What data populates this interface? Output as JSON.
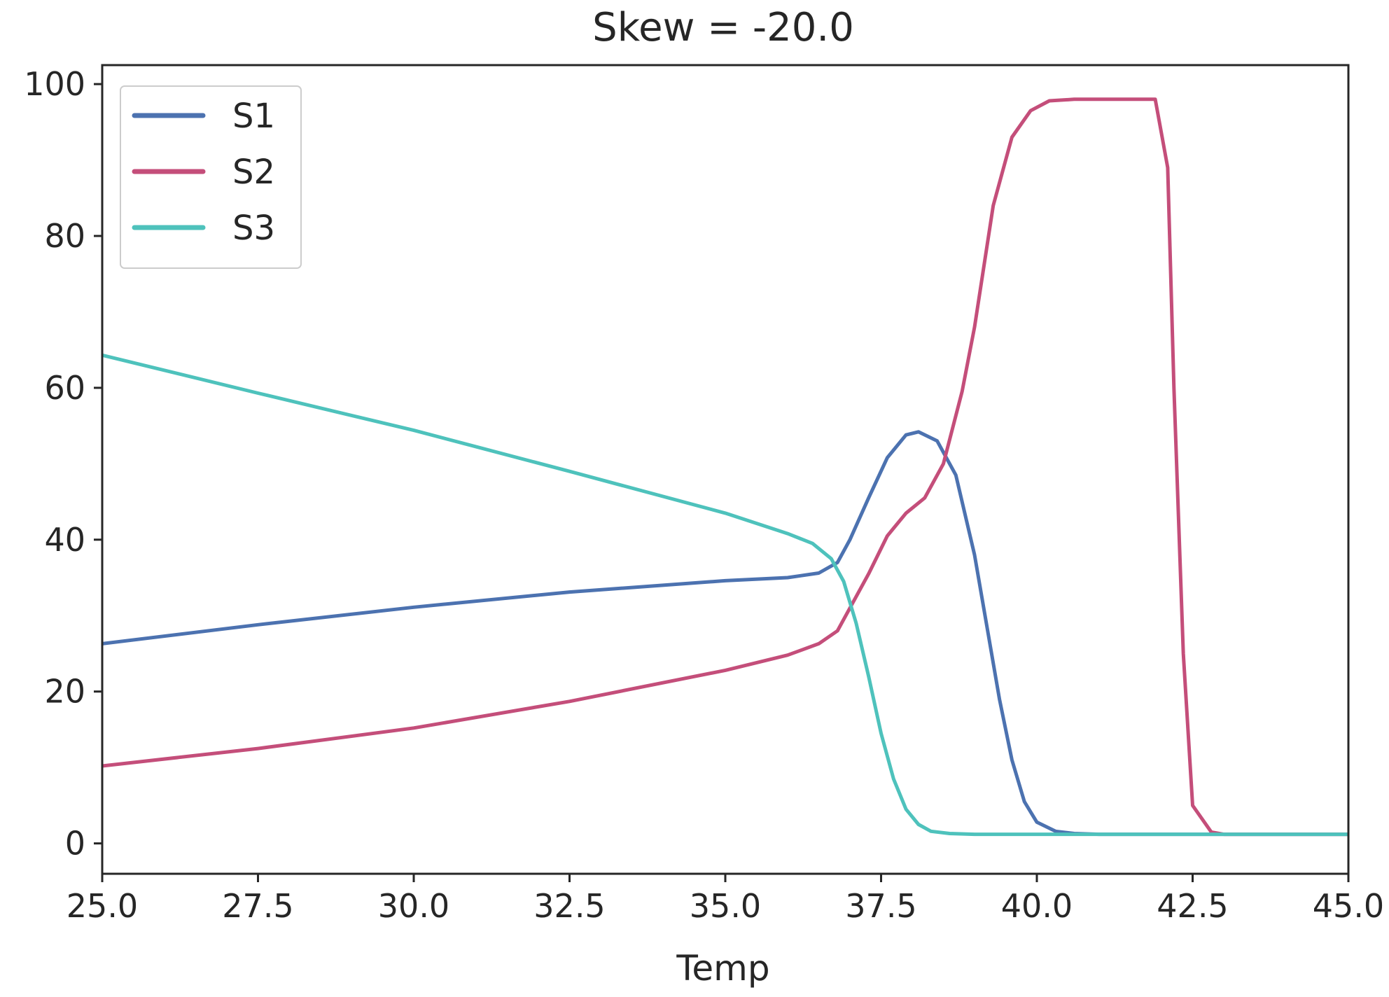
{
  "chart_data": {
    "type": "line",
    "title": "Skew = -20.0",
    "xlabel": "Temp",
    "ylabel": "",
    "xlim": [
      25.0,
      45.0
    ],
    "ylim": [
      -4,
      102.5
    ],
    "xticks": [
      25.0,
      27.5,
      30.0,
      32.5,
      35.0,
      37.5,
      40.0,
      42.5,
      45.0
    ],
    "xtick_labels": [
      "25.0",
      "27.5",
      "30.0",
      "32.5",
      "35.0",
      "37.5",
      "40.0",
      "42.5",
      "45.0"
    ],
    "yticks": [
      0,
      20,
      40,
      60,
      80,
      100
    ],
    "ytick_labels": [
      "0",
      "20",
      "40",
      "60",
      "80",
      "100"
    ],
    "grid": false,
    "legend_position": "upper-left",
    "series": [
      {
        "name": "S1",
        "color": "#4c72b0",
        "x": [
          25.0,
          27.5,
          30.0,
          32.5,
          35.0,
          36.0,
          36.5,
          36.8,
          37.0,
          37.3,
          37.6,
          37.9,
          38.1,
          38.4,
          38.7,
          39.0,
          39.2,
          39.4,
          39.6,
          39.8,
          40.0,
          40.3,
          40.6,
          41.0,
          42.0,
          43.0,
          44.0,
          45.0
        ],
        "values": [
          26.3,
          28.8,
          31.1,
          33.1,
          34.6,
          35.0,
          35.6,
          37.0,
          40.0,
          45.5,
          50.8,
          53.8,
          54.2,
          53.0,
          48.5,
          38.0,
          28.5,
          19.0,
          11.0,
          5.5,
          2.8,
          1.6,
          1.3,
          1.2,
          1.2,
          1.2,
          1.2,
          1.2
        ]
      },
      {
        "name": "S2",
        "color": "#c44e7a",
        "x": [
          25.0,
          27.5,
          30.0,
          32.5,
          35.0,
          36.0,
          36.5,
          36.8,
          37.0,
          37.3,
          37.6,
          37.9,
          38.2,
          38.5,
          38.8,
          39.0,
          39.3,
          39.6,
          39.9,
          40.2,
          40.6,
          41.0,
          41.6,
          41.9,
          42.1,
          42.2,
          42.35,
          42.5,
          42.8,
          43.0,
          44.0,
          45.0
        ],
        "values": [
          10.2,
          12.5,
          15.2,
          18.7,
          22.8,
          24.8,
          26.3,
          28.0,
          31.0,
          35.5,
          40.5,
          43.5,
          45.5,
          50.0,
          59.5,
          68.0,
          84.0,
          93.0,
          96.5,
          97.8,
          98.0,
          98.0,
          98.0,
          98.0,
          89.0,
          60.0,
          25.0,
          5.0,
          1.5,
          1.2,
          1.2,
          1.2
        ]
      },
      {
        "name": "S3",
        "color": "#4ec2bc",
        "x": [
          25.0,
          27.5,
          30.0,
          32.5,
          35.0,
          36.0,
          36.4,
          36.7,
          36.9,
          37.1,
          37.3,
          37.5,
          37.7,
          37.9,
          38.1,
          38.3,
          38.6,
          39.0,
          40.0,
          42.0,
          45.0
        ],
        "values": [
          64.3,
          59.3,
          54.4,
          49.0,
          43.5,
          40.8,
          39.5,
          37.5,
          34.5,
          29.0,
          22.0,
          14.5,
          8.5,
          4.5,
          2.5,
          1.6,
          1.3,
          1.2,
          1.2,
          1.2,
          1.2
        ]
      }
    ]
  }
}
